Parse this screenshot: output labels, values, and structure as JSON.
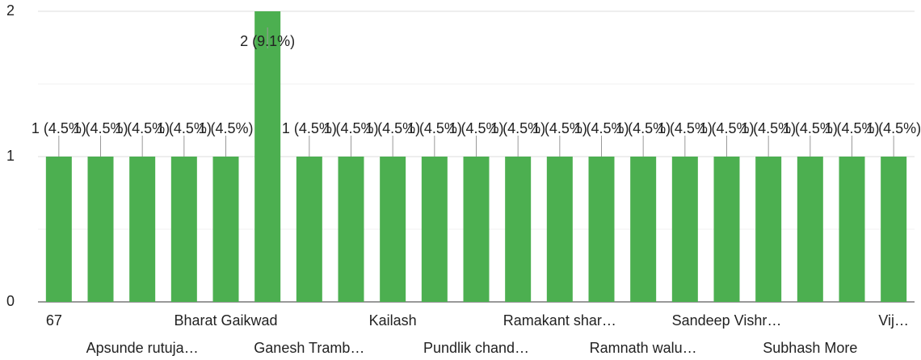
{
  "chart_data": {
    "type": "bar",
    "categories": [
      "67",
      null,
      "Apsunde rutuja…",
      null,
      "Bharat Gaikwad",
      null,
      "Ganesh Tramb…",
      null,
      "Kailash",
      null,
      "Pundlik chand…",
      null,
      "Ramakant shar…",
      null,
      "Ramnath walu…",
      null,
      "Sandeep Vishr…",
      null,
      "Subhash More",
      null,
      "Vij…"
    ],
    "values": [
      1,
      1,
      1,
      1,
      1,
      2,
      1,
      1,
      1,
      1,
      1,
      1,
      1,
      1,
      1,
      1,
      1,
      1,
      1,
      1,
      1
    ],
    "value_labels": [
      "1 (4.5%)",
      "1 (4.5%)",
      "1 (4.5%)",
      "1 (4.5%)",
      "1 (4.5%)",
      "2 (9.1%)",
      "1 (4.5%)",
      "1 (4.5%)",
      "1 (4.5%)",
      "1 (4.5%)",
      "1 (4.5%)",
      "1 (4.5%)",
      "1 (4.5%)",
      "1 (4.5%)",
      "1 (4.5%)",
      "1 (4.5%)",
      "1 (4.5%)",
      "1 (4.5%)",
      "1 (4.5%)",
      "1 (4.5%)",
      "1 (4.5%)"
    ],
    "color": "#4caf50",
    "ylim": [
      0,
      2
    ],
    "yticks": [
      0,
      1,
      2
    ],
    "grid": true
  }
}
